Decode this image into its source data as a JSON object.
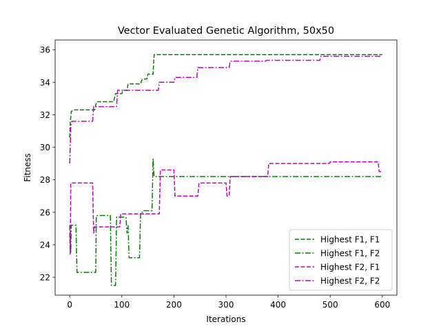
{
  "chart_data": {
    "type": "line",
    "title": "Vector Evaluated Genetic Algorithm, 50x50",
    "xlabel": "Iterations",
    "ylabel": "Fitness",
    "xlim": [
      -28,
      628
    ],
    "ylim": [
      20.9,
      36.6
    ],
    "x_ticks": [
      0,
      100,
      200,
      300,
      400,
      500,
      600
    ],
    "y_ticks": [
      22,
      24,
      26,
      28,
      30,
      32,
      34,
      36
    ],
    "legend_position": "lower right",
    "grid": false,
    "series": [
      {
        "name": "Highest F1, F1",
        "color": "#008000",
        "dash": "dashed",
        "points": [
          [
            0,
            30.6
          ],
          [
            1,
            31.5
          ],
          [
            3,
            32.2
          ],
          [
            8,
            32.3
          ],
          [
            48,
            32.3
          ],
          [
            50,
            32.6
          ],
          [
            52,
            32.8
          ],
          [
            84,
            32.8
          ],
          [
            88,
            33.3
          ],
          [
            100,
            33.3
          ],
          [
            102,
            33.5
          ],
          [
            110,
            33.5
          ],
          [
            112,
            33.9
          ],
          [
            136,
            33.9
          ],
          [
            138,
            34.1
          ],
          [
            140,
            34.2
          ],
          [
            148,
            34.2
          ],
          [
            150,
            34.5
          ],
          [
            160,
            34.5
          ],
          [
            162,
            35.7
          ],
          [
            600,
            35.7
          ]
        ]
      },
      {
        "name": "Highest F1, F2",
        "color": "#008000",
        "dash": "dashdot",
        "points": [
          [
            0,
            25.2
          ],
          [
            2,
            23.5
          ],
          [
            3,
            25.2
          ],
          [
            12,
            25.2
          ],
          [
            14,
            22.3
          ],
          [
            50,
            22.3
          ],
          [
            51,
            25.8
          ],
          [
            78,
            25.8
          ],
          [
            80,
            21.5
          ],
          [
            88,
            21.5
          ],
          [
            90,
            25.7
          ],
          [
            108,
            25.7
          ],
          [
            110,
            24.7
          ],
          [
            112,
            25.2
          ],
          [
            114,
            23.2
          ],
          [
            134,
            23.2
          ],
          [
            136,
            26.0
          ],
          [
            140,
            26.0
          ],
          [
            142,
            26.1
          ],
          [
            158,
            26.1
          ],
          [
            160,
            29.3
          ],
          [
            162,
            28.2
          ],
          [
            600,
            28.2
          ]
        ]
      },
      {
        "name": "Highest F2, F1",
        "color": "#bf00bf",
        "dash": "dashed",
        "points": [
          [
            0,
            24.7
          ],
          [
            1,
            23.4
          ],
          [
            2,
            27.8
          ],
          [
            44,
            27.8
          ],
          [
            46,
            24.7
          ],
          [
            48,
            25.1
          ],
          [
            96,
            25.1
          ],
          [
            98,
            25.9
          ],
          [
            172,
            25.9
          ],
          [
            174,
            28.6
          ],
          [
            200,
            28.6
          ],
          [
            202,
            27.0
          ],
          [
            246,
            27.0
          ],
          [
            248,
            27.8
          ],
          [
            300,
            27.8
          ],
          [
            302,
            27.0
          ],
          [
            306,
            27.0
          ],
          [
            308,
            28.2
          ],
          [
            380,
            28.2
          ],
          [
            382,
            29.0
          ],
          [
            498,
            29.0
          ],
          [
            500,
            29.1
          ],
          [
            592,
            29.1
          ],
          [
            594,
            28.5
          ],
          [
            600,
            28.5
          ]
        ]
      },
      {
        "name": "Highest F2, F2",
        "color": "#bf00bf",
        "dash": "dashdot",
        "points": [
          [
            0,
            29.0
          ],
          [
            2,
            31.2
          ],
          [
            4,
            31.6
          ],
          [
            44,
            31.6
          ],
          [
            46,
            32.5
          ],
          [
            90,
            32.5
          ],
          [
            92,
            33.5
          ],
          [
            170,
            33.5
          ],
          [
            172,
            34.0
          ],
          [
            200,
            34.0
          ],
          [
            202,
            34.3
          ],
          [
            244,
            34.3
          ],
          [
            246,
            34.9
          ],
          [
            306,
            34.9
          ],
          [
            308,
            35.3
          ],
          [
            376,
            35.3
          ],
          [
            378,
            35.35
          ],
          [
            480,
            35.35
          ],
          [
            482,
            35.6
          ],
          [
            600,
            35.6
          ]
        ]
      }
    ]
  }
}
